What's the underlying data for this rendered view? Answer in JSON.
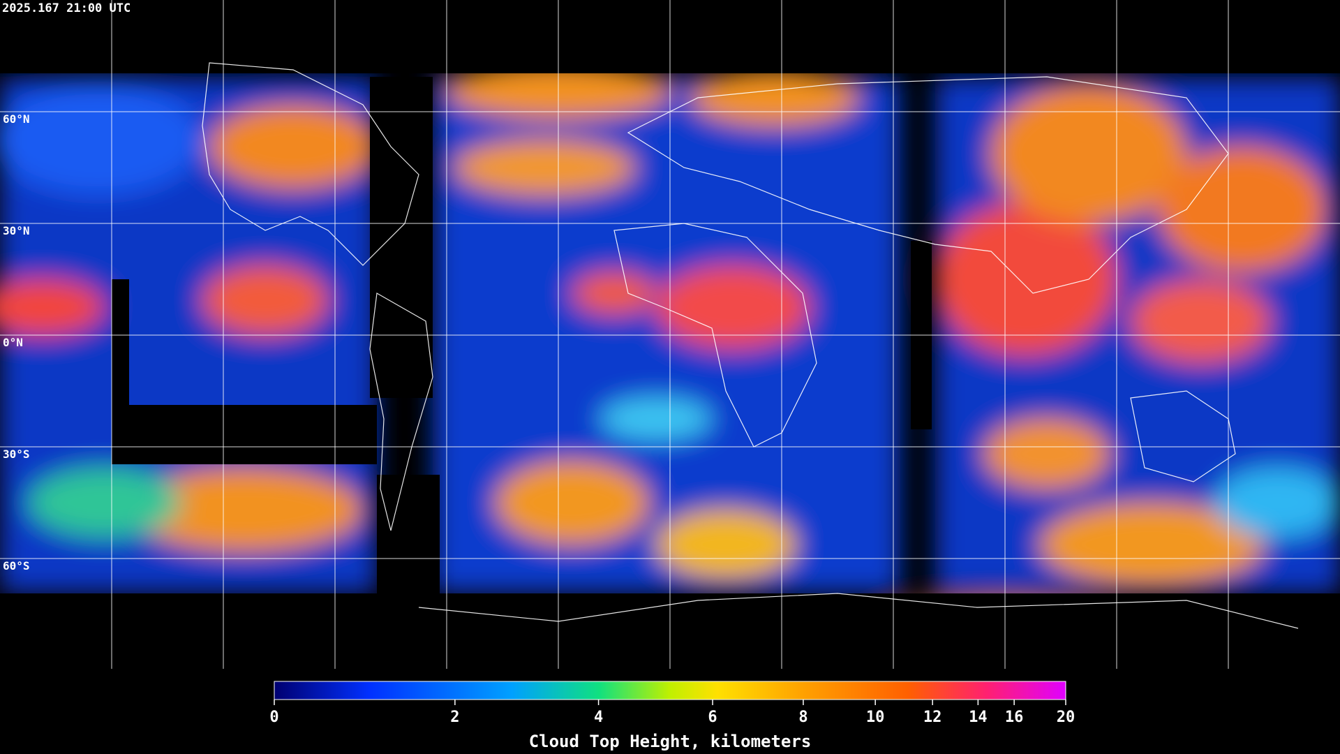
{
  "timestamp": "2025.167 21:00 UTC",
  "map": {
    "lat_labels": [
      "60°N",
      "30°N",
      "0°N",
      "30°S",
      "60°S"
    ]
  },
  "colorbar": {
    "ticks": [
      0,
      2,
      4,
      6,
      8,
      10,
      12,
      14,
      16,
      20
    ],
    "label": "Cloud Top Height, kilometers"
  }
}
